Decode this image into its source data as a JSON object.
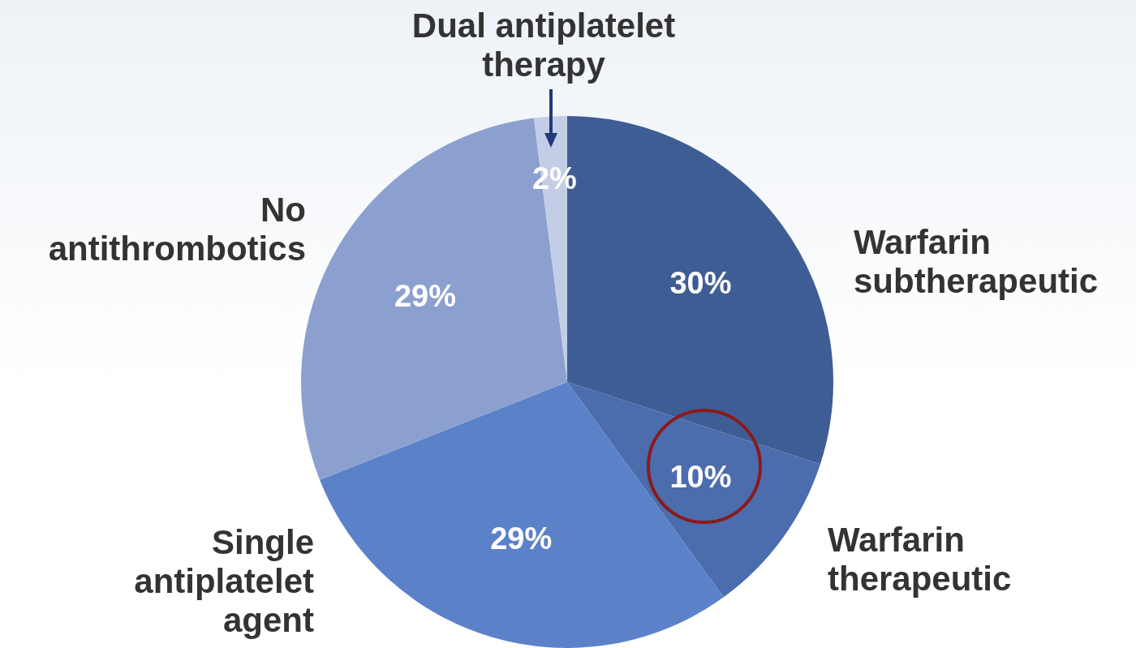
{
  "chart_data": {
    "type": "pie",
    "categories": [
      "Warfarin subtherapeutic",
      "Warfarin therapeutic",
      "Single antiplatelet agent",
      "No antithrombotics",
      "Dual antiplatelet therapy"
    ],
    "values": [
      30,
      10,
      29,
      29,
      2
    ],
    "value_labels": [
      "30%",
      "10%",
      "29%",
      "29%",
      "2%"
    ],
    "colors": [
      "#3f5d95",
      "#4b6cad",
      "#5b82c9",
      "#8ba0cf",
      "#c3cee6"
    ],
    "legend": false
  }
}
